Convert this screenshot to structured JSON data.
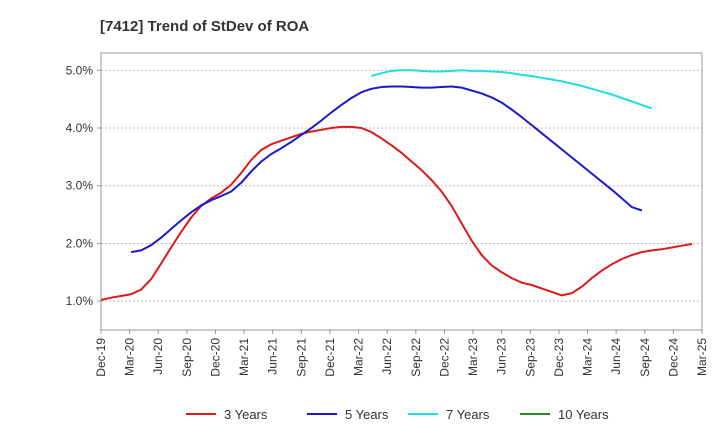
{
  "chart_data": {
    "type": "line",
    "title": "[7412]  Trend of StDev of ROA",
    "xlabel": "",
    "ylabel": "",
    "x_ticks": [
      "Dec-19",
      "Mar-20",
      "Jun-20",
      "Sep-20",
      "Dec-20",
      "Mar-21",
      "Jun-21",
      "Sep-21",
      "Dec-21",
      "Mar-22",
      "Jun-22",
      "Sep-22",
      "Dec-22",
      "Mar-23",
      "Jun-23",
      "Sep-23",
      "Dec-23",
      "Mar-24",
      "Jun-24",
      "Sep-24",
      "Dec-24",
      "Mar-25"
    ],
    "y_ticks": [
      "1.0%",
      "2.0%",
      "3.0%",
      "4.0%",
      "5.0%"
    ],
    "y_tick_values": [
      1.0,
      2.0,
      3.0,
      4.0,
      5.0
    ],
    "ylim": [
      0.5,
      5.3
    ],
    "grid": true,
    "legend_position": "bottom",
    "series": [
      {
        "name": "3 Years",
        "color": "#dd1a1a",
        "x": [
          0,
          1,
          2,
          3,
          4,
          5,
          6,
          7,
          8,
          9,
          10,
          11,
          12,
          13,
          14,
          15,
          16,
          17,
          18,
          19,
          20,
          21,
          22,
          23,
          24,
          25,
          26,
          27,
          28,
          29,
          30,
          31,
          32,
          33,
          34,
          35,
          36,
          37,
          38,
          39,
          40,
          41,
          42,
          43,
          44,
          45,
          46,
          47,
          48,
          49,
          50,
          51,
          52,
          53,
          54,
          55,
          56,
          57,
          58,
          59,
          60
        ],
        "values": [
          1.02,
          1.06,
          1.09,
          1.12,
          1.2,
          1.38,
          1.65,
          1.93,
          2.2,
          2.45,
          2.65,
          2.78,
          2.88,
          3.02,
          3.22,
          3.45,
          3.62,
          3.72,
          3.78,
          3.84,
          3.9,
          3.94,
          3.97,
          4.0,
          4.02,
          4.02,
          4.0,
          3.93,
          3.82,
          3.7,
          3.57,
          3.42,
          3.27,
          3.1,
          2.9,
          2.65,
          2.35,
          2.05,
          1.8,
          1.62,
          1.5,
          1.4,
          1.32,
          1.28,
          1.22,
          1.16,
          1.1,
          1.14,
          1.25,
          1.4,
          1.53,
          1.64,
          1.73,
          1.8,
          1.85,
          1.88,
          1.9,
          1.93,
          1.96,
          1.99,
          null
        ]
      },
      {
        "name": "5 Years",
        "color": "#1a1acc",
        "x": [
          3,
          4,
          5,
          6,
          7,
          8,
          9,
          10,
          11,
          12,
          13,
          14,
          15,
          16,
          17,
          18,
          19,
          20,
          21,
          22,
          23,
          24,
          25,
          26,
          27,
          28,
          29,
          30,
          31,
          32,
          33,
          34,
          35,
          36,
          37,
          38,
          39,
          40,
          41,
          42,
          43,
          44,
          45,
          46,
          47,
          48,
          49,
          50,
          51,
          52,
          53,
          54,
          55,
          56,
          57,
          58,
          59,
          60
        ],
        "values": [
          1.85,
          1.88,
          1.97,
          2.1,
          2.25,
          2.4,
          2.54,
          2.66,
          2.75,
          2.82,
          2.9,
          3.05,
          3.25,
          3.42,
          3.55,
          3.65,
          3.76,
          3.88,
          4.0,
          4.13,
          4.27,
          4.4,
          4.52,
          4.62,
          4.68,
          4.71,
          4.72,
          4.72,
          4.71,
          4.7,
          4.7,
          4.71,
          4.72,
          4.7,
          4.65,
          4.6,
          4.53,
          4.44,
          4.32,
          4.19,
          4.05,
          3.91,
          3.77,
          3.63,
          3.49,
          3.35,
          3.21,
          3.07,
          2.93,
          2.78,
          2.63,
          2.57,
          null,
          null,
          null,
          null,
          null,
          null
        ]
      },
      {
        "name": "7 Years",
        "color": "#22dddd",
        "x": [
          27,
          28,
          29,
          30,
          31,
          32,
          33,
          34,
          35,
          36,
          37,
          38,
          39,
          40,
          41,
          42,
          43,
          44,
          45,
          46,
          47,
          48,
          49,
          50,
          51,
          52,
          53,
          54,
          55,
          56,
          57,
          58,
          59,
          60
        ],
        "values": [
          4.9,
          4.95,
          4.99,
          5.0,
          5.0,
          4.99,
          4.98,
          4.98,
          4.99,
          5.0,
          4.99,
          4.99,
          4.98,
          4.97,
          4.95,
          4.92,
          4.9,
          4.87,
          4.84,
          4.81,
          4.77,
          4.73,
          4.68,
          4.63,
          4.58,
          4.52,
          4.46,
          4.4,
          4.34,
          null,
          null,
          null,
          null,
          null
        ]
      },
      {
        "name": "10 Years",
        "color": "#2a8a2a",
        "x": [],
        "values": []
      }
    ]
  }
}
